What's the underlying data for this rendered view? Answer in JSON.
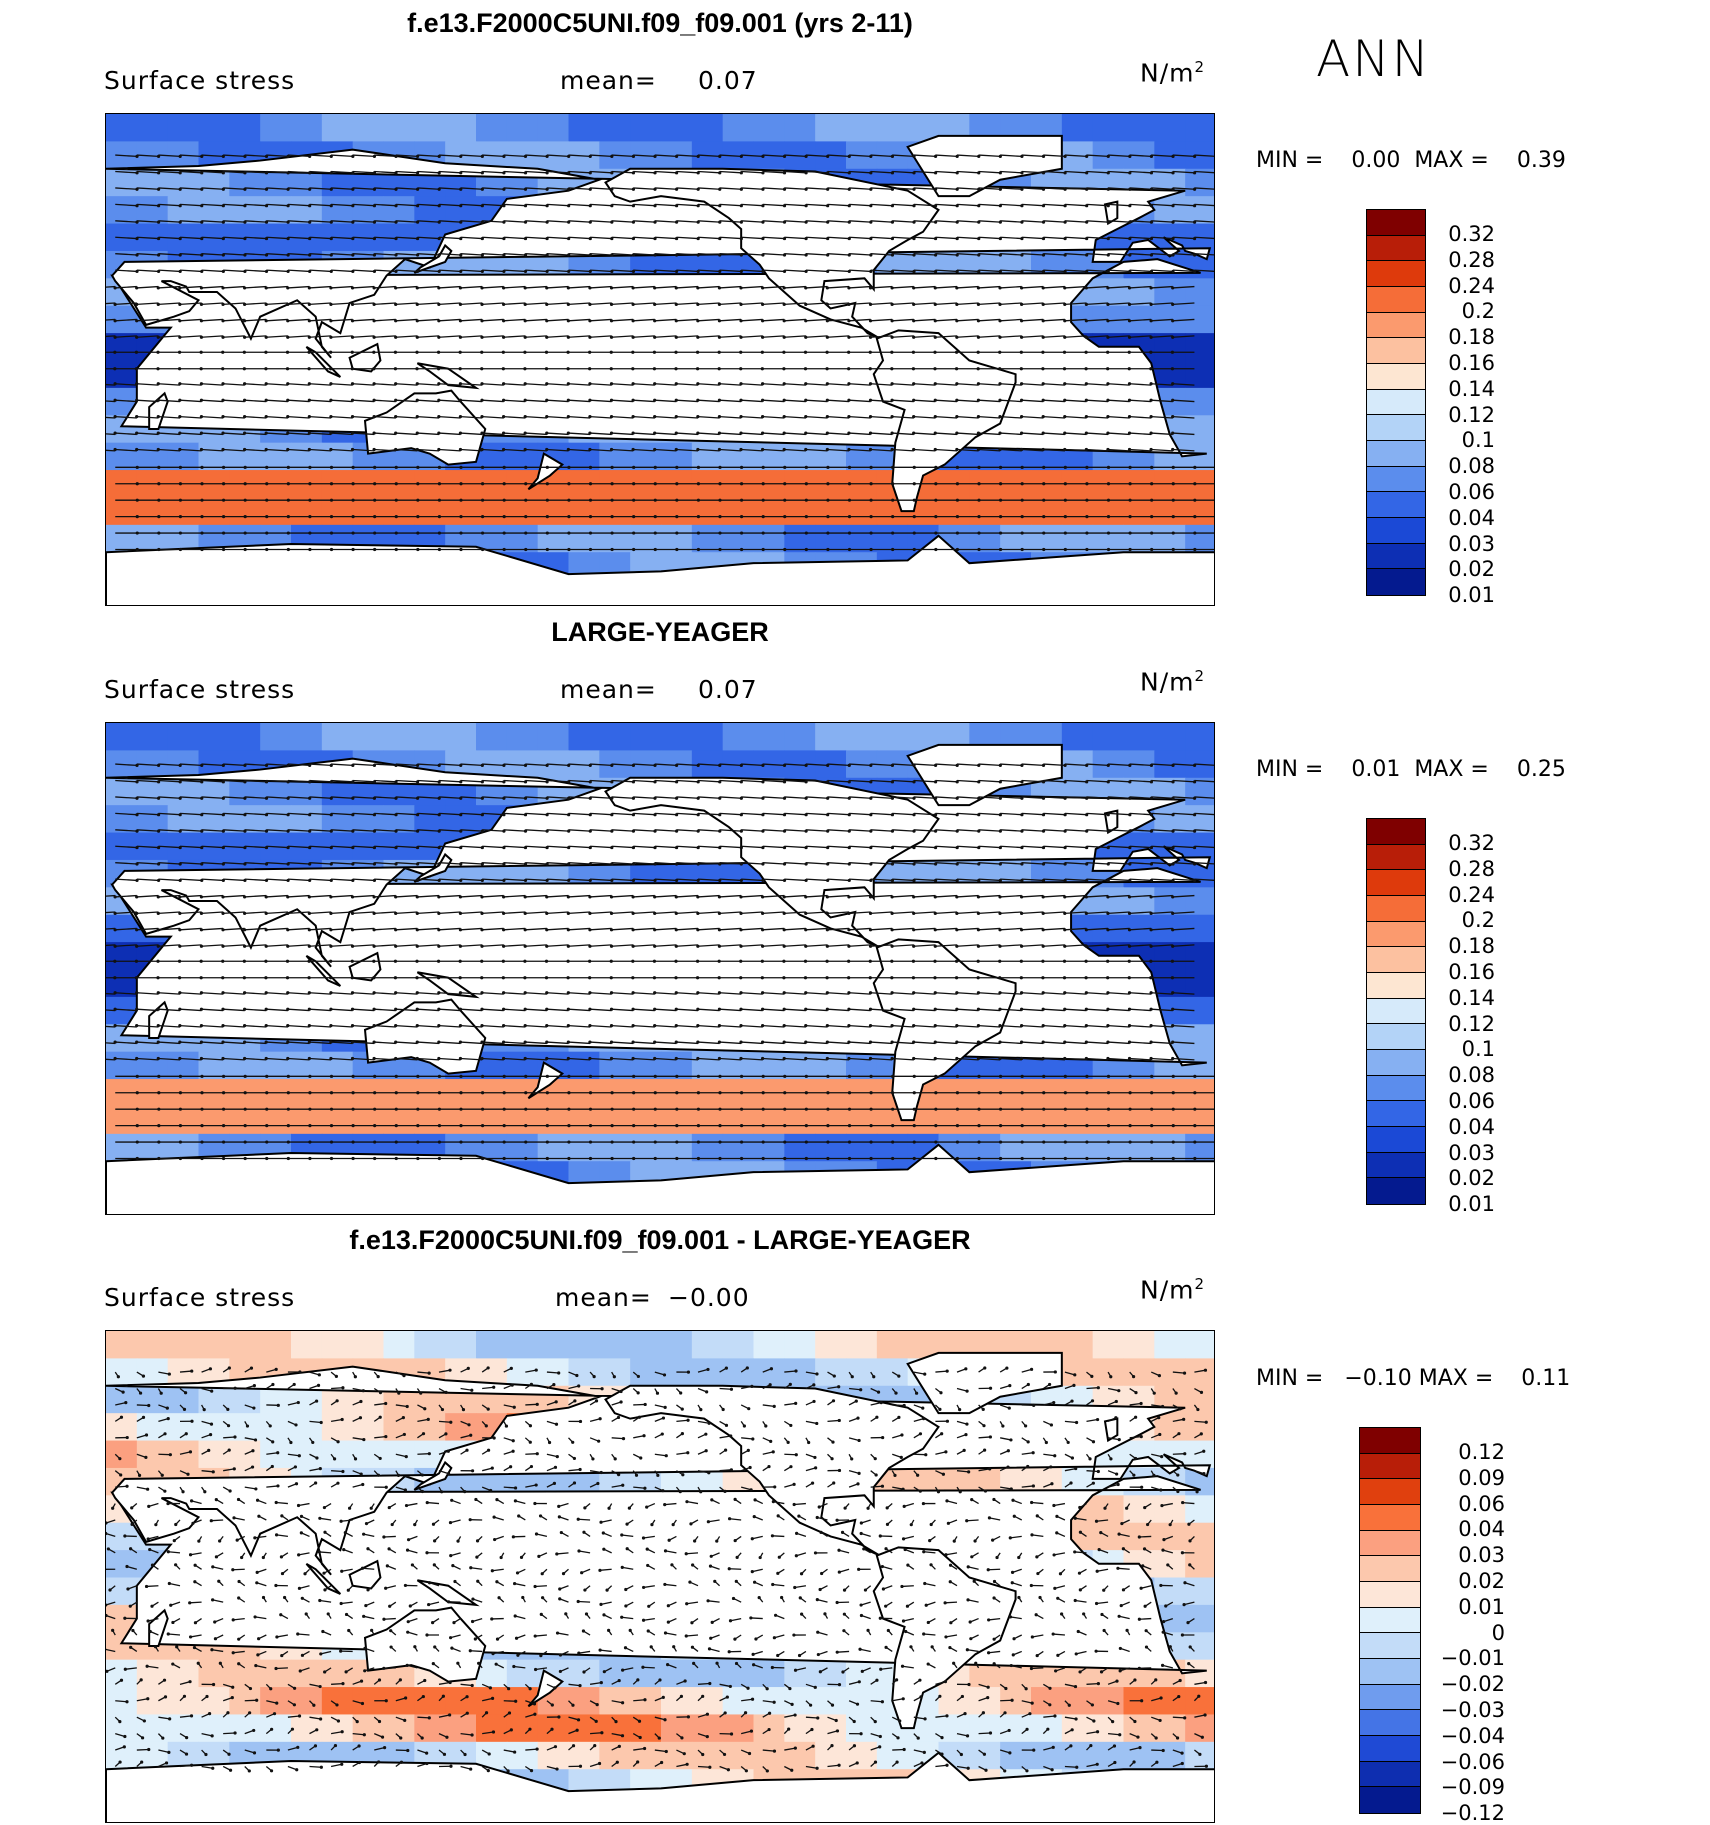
{
  "season": "ANN",
  "variable_label": "Surface stress",
  "units_base": "N/m",
  "units_exp": "2",
  "panels": [
    {
      "title": "f.e13.F2000C5UNI.f09_f09.001 (yrs 2-11)",
      "mean_label": "mean=",
      "mean_value": "0.07",
      "min_label": "MIN =",
      "min_value": "0.00",
      "max_label": "MAX =",
      "max_value": "0.39",
      "levels": [
        "0.32",
        "0.28",
        "0.24",
        "0.2",
        "0.18",
        "0.16",
        "0.14",
        "0.12",
        "0.1",
        "0.08",
        "0.06",
        "0.04",
        "0.03",
        "0.02",
        "0.01"
      ]
    },
    {
      "title": "LARGE-YEAGER",
      "mean_label": "mean=",
      "mean_value": "0.07",
      "min_label": "MIN =",
      "min_value": "0.01",
      "max_label": "MAX =",
      "max_value": "0.25",
      "levels": [
        "0.32",
        "0.28",
        "0.24",
        "0.2",
        "0.18",
        "0.16",
        "0.14",
        "0.12",
        "0.1",
        "0.08",
        "0.06",
        "0.04",
        "0.03",
        "0.02",
        "0.01"
      ]
    },
    {
      "title": "f.e13.F2000C5UNI.f09_f09.001 - LARGE-YEAGER",
      "mean_label": "mean=",
      "mean_value": "−0.00",
      "min_label": "MIN =",
      "min_value": "−0.10",
      "max_label": "MAX =",
      "max_value": "0.11",
      "levels": [
        "0.12",
        "0.09",
        "0.06",
        "0.04",
        "0.03",
        "0.02",
        "0.01",
        "0",
        "−0.01",
        "−0.02",
        "−0.03",
        "−0.04",
        "−0.06",
        "−0.09",
        "−0.12"
      ]
    }
  ],
  "colors": {
    "sequential": [
      "#7f0000",
      "#b81e08",
      "#de3a0c",
      "#f56d38",
      "#fb9a6e",
      "#fcc1a0",
      "#fde6d2",
      "#d6eafa",
      "#b3d3f7",
      "#86b0f2",
      "#5b8ded",
      "#3366e6",
      "#1b49d6",
      "#0d2fb4",
      "#041a8f"
    ],
    "diverging": [
      "#7f0000",
      "#b81e08",
      "#e0400e",
      "#f9713a",
      "#fba080",
      "#fcc8ad",
      "#fde6d8",
      "#dff0fb",
      "#c3dcf8",
      "#9ec2f3",
      "#6f9cee",
      "#4474e6",
      "#1f4ad5",
      "#0e2eb0",
      "#041a8f"
    ]
  },
  "chart_data": [
    {
      "type": "heatmap",
      "title": "f.e13.F2000C5UNI.f09_f09.001 (yrs 2-11)",
      "variable": "Surface stress",
      "units": "N/m2",
      "season": "ANN",
      "mean": 0.07,
      "min": 0.0,
      "max": 0.39,
      "contour_levels": [
        0.01,
        0.02,
        0.03,
        0.04,
        0.06,
        0.08,
        0.1,
        0.12,
        0.14,
        0.16,
        0.18,
        0.2,
        0.24,
        0.28,
        0.32
      ],
      "overlay": "wind stress vectors",
      "projection": "global cylindrical equidistant"
    },
    {
      "type": "heatmap",
      "title": "LARGE-YEAGER",
      "variable": "Surface stress",
      "units": "N/m2",
      "season": "ANN",
      "mean": 0.07,
      "min": 0.01,
      "max": 0.25,
      "contour_levels": [
        0.01,
        0.02,
        0.03,
        0.04,
        0.06,
        0.08,
        0.1,
        0.12,
        0.14,
        0.16,
        0.18,
        0.2,
        0.24,
        0.28,
        0.32
      ],
      "overlay": "wind stress vectors",
      "projection": "global cylindrical equidistant"
    },
    {
      "type": "heatmap",
      "title": "f.e13.F2000C5UNI.f09_f09.001 - LARGE-YEAGER",
      "variable": "Surface stress",
      "units": "N/m2",
      "season": "ANN",
      "mean": -0.0,
      "min": -0.1,
      "max": 0.11,
      "contour_levels": [
        -0.12,
        -0.09,
        -0.06,
        -0.04,
        -0.03,
        -0.02,
        -0.01,
        0,
        0.01,
        0.02,
        0.03,
        0.04,
        0.06,
        0.09,
        0.12
      ],
      "overlay": "wind stress difference vectors",
      "projection": "global cylindrical equidistant"
    }
  ]
}
